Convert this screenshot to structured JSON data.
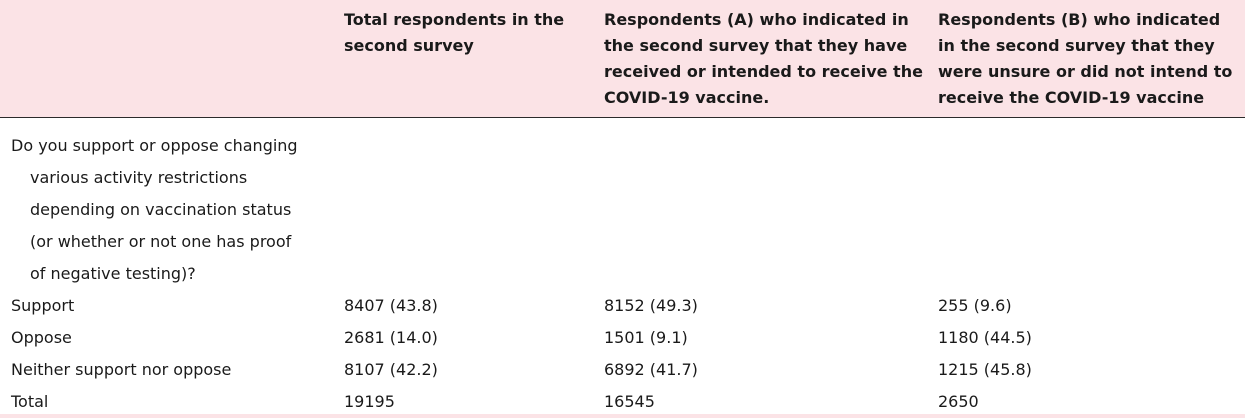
{
  "table": {
    "headers": [
      "",
      "Total respondents in the second survey",
      "Respondents (A) who indicated in the second survey that they have received or intended to receive the COVID-19 vaccine.",
      "Respondents (B) who indicated in the second survey that they were unsure or did not intend to receive the COVID-19 vaccine"
    ],
    "question_lines": [
      "Do you support or oppose changing",
      "various activity restrictions",
      "depending on vaccination status",
      "(or whether or not one has proof",
      "of negative testing)?"
    ],
    "rows": [
      [
        "Support",
        "8407 (43.8)",
        "8152 (49.3)",
        "255 (9.6)"
      ],
      [
        "Oppose",
        "2681 (14.0)",
        "1501 (9.1)",
        "1180 (44.5)"
      ],
      [
        "Neither support nor oppose",
        "8107 (42.2)",
        "6892 (41.7)",
        "1215 (45.8)"
      ],
      [
        "Total",
        "19195",
        "16545",
        "2650"
      ]
    ]
  },
  "colors": {
    "header_background": "#fbe3e6",
    "rule": "#2b2b2b",
    "text": "#1a1a1a"
  }
}
